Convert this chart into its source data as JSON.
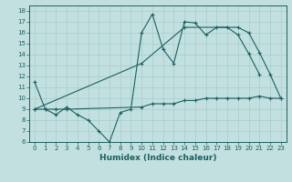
{
  "xlabel": "Humidex (Indice chaleur)",
  "xlim": [
    -0.5,
    23.5
  ],
  "ylim": [
    6,
    18.5
  ],
  "yticks": [
    6,
    7,
    8,
    9,
    10,
    11,
    12,
    13,
    14,
    15,
    16,
    17,
    18
  ],
  "xticks": [
    0,
    1,
    2,
    3,
    4,
    5,
    6,
    7,
    8,
    9,
    10,
    11,
    12,
    13,
    14,
    15,
    16,
    17,
    18,
    19,
    20,
    21,
    22,
    23
  ],
  "bg_color": "#c2e0e0",
  "line_color": "#1a6060",
  "grid_color": "#a8cccc",
  "line1_x": [
    0,
    1,
    2,
    3,
    4,
    5,
    6,
    7,
    8,
    9,
    10,
    11,
    12,
    13,
    14,
    15,
    16,
    17,
    18,
    19,
    20,
    21
  ],
  "line1_y": [
    11.5,
    9.0,
    8.5,
    9.2,
    8.5,
    8.0,
    7.0,
    6.0,
    8.7,
    9.0,
    16.0,
    17.7,
    14.5,
    13.2,
    17.0,
    16.9,
    15.8,
    16.5,
    16.5,
    15.8,
    14.1,
    12.2
  ],
  "line2_x": [
    0,
    1,
    2,
    3,
    10,
    11,
    12,
    13,
    14,
    15,
    16,
    17,
    18,
    19,
    20,
    21,
    22,
    23
  ],
  "line2_y": [
    9.0,
    9.0,
    9.0,
    9.0,
    9.2,
    9.5,
    9.5,
    9.5,
    9.8,
    9.8,
    10.0,
    10.0,
    10.0,
    10.0,
    10.0,
    10.2,
    10.0,
    10.0
  ],
  "line3_x": [
    0,
    10,
    14,
    19,
    20,
    21,
    22,
    23
  ],
  "line3_y": [
    9.0,
    13.2,
    16.5,
    16.5,
    16.0,
    14.2,
    12.2,
    10.0
  ],
  "tick_fontsize": 5.0,
  "label_fontsize": 6.5
}
